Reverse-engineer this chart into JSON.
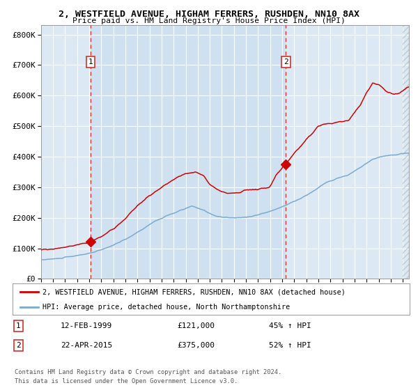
{
  "title_line1": "2, WESTFIELD AVENUE, HIGHAM FERRERS, RUSHDEN, NN10 8AX",
  "title_line2": "Price paid vs. HM Land Registry's House Price Index (HPI)",
  "ylabel_ticks": [
    "£0",
    "£100K",
    "£200K",
    "£300K",
    "£400K",
    "£500K",
    "£600K",
    "£700K",
    "£800K"
  ],
  "ytick_vals": [
    0,
    100000,
    200000,
    300000,
    400000,
    500000,
    600000,
    700000,
    800000
  ],
  "ylim": [
    0,
    830000
  ],
  "xlim_start": 1995.0,
  "xlim_end": 2025.5,
  "bg_color": "#dce9f5",
  "grid_color": "#ffffff",
  "red_line_color": "#cc0000",
  "blue_line_color": "#7aaad0",
  "sale1_x": 1999.12,
  "sale1_y": 121000,
  "sale2_x": 2015.31,
  "sale2_y": 375000,
  "legend_red_label": "2, WESTFIELD AVENUE, HIGHAM FERRERS, RUSHDEN, NN10 8AX (detached house)",
  "legend_blue_label": "HPI: Average price, detached house, North Northamptonshire",
  "table_row1": [
    "1",
    "12-FEB-1999",
    "£121,000",
    "45% ↑ HPI"
  ],
  "table_row2": [
    "2",
    "22-APR-2015",
    "£375,000",
    "52% ↑ HPI"
  ],
  "footer": "Contains HM Land Registry data © Crown copyright and database right 2024.\nThis data is licensed under the Open Government Licence v3.0.",
  "hatch_alpha": 0.35
}
